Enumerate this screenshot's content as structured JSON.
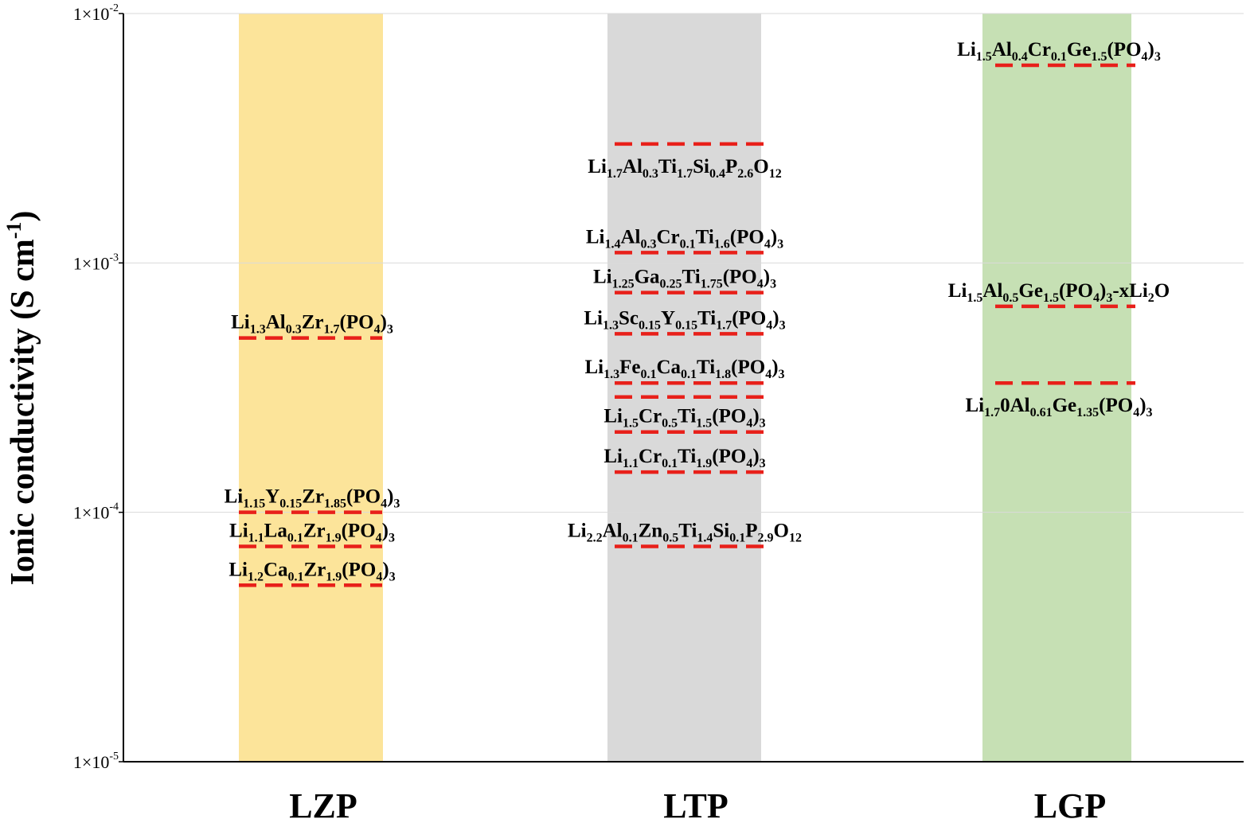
{
  "chart_data": {
    "type": "scatter",
    "title": "",
    "xlabel": "",
    "ylabel": "Ionic conductivity (S cm-1)",
    "ylabel_parts": [
      {
        "t": "Ionic conductivity (S cm"
      },
      {
        "t": "-1",
        "sup": true
      },
      {
        "t": ")"
      }
    ],
    "yscale": "log",
    "ylim": [
      1e-05,
      0.01
    ],
    "yticks": [
      {
        "value": 1e-05,
        "label": "1×10-5",
        "mantissa": "1×10",
        "exponent": "-5"
      },
      {
        "value": 0.0001,
        "label": "1×10-4",
        "mantissa": "1×10",
        "exponent": "-4"
      },
      {
        "value": 0.001,
        "label": "1×10-3",
        "mantissa": "1×10",
        "exponent": "-3"
      },
      {
        "value": 0.01,
        "label": "1×10-2",
        "mantissa": "1×10",
        "exponent": "-2"
      }
    ],
    "grid": true,
    "categories": [
      "LZP",
      "LTP",
      "LGP"
    ],
    "band_colors": {
      "LZP": "#fce49a",
      "LTP": "#d9d9d9",
      "LGP": "#c6e0b4"
    },
    "line_color": "#e8201a",
    "points": [
      {
        "category": "LZP",
        "value": 0.0005,
        "label": "Li1.3Al0.3Zr1.7(PO4)3",
        "label_pos": "above",
        "parts": [
          {
            "t": "Li"
          },
          {
            "t": "1.3",
            "sub": true
          },
          {
            "t": "Al"
          },
          {
            "t": "0.3",
            "sub": true
          },
          {
            "t": "Zr"
          },
          {
            "t": "1.7",
            "sub": true
          },
          {
            "t": "(PO"
          },
          {
            "t": "4",
            "sub": true
          },
          {
            "t": ")"
          },
          {
            "t": "3",
            "sub": true
          }
        ]
      },
      {
        "category": "LZP",
        "value": 0.0001,
        "label": "Li1.15Y0.15Zr1.85(PO4)3",
        "label_pos": "above",
        "parts": [
          {
            "t": "Li"
          },
          {
            "t": "1.15",
            "sub": true
          },
          {
            "t": "Y"
          },
          {
            "t": "0.15",
            "sub": true
          },
          {
            "t": "Zr"
          },
          {
            "t": "1.85",
            "sub": true
          },
          {
            "t": "(PO"
          },
          {
            "t": "4",
            "sub": true
          },
          {
            "t": ")"
          },
          {
            "t": "3",
            "sub": true
          }
        ]
      },
      {
        "category": "LZP",
        "value": 7.3e-05,
        "label": "Li1.1La0.1Zr1.9(PO4)3",
        "label_pos": "above",
        "parts": [
          {
            "t": "Li"
          },
          {
            "t": "1.1",
            "sub": true
          },
          {
            "t": "La"
          },
          {
            "t": "0.1",
            "sub": true
          },
          {
            "t": "Zr"
          },
          {
            "t": "1.9",
            "sub": true
          },
          {
            "t": "(PO"
          },
          {
            "t": "4",
            "sub": true
          },
          {
            "t": ")"
          },
          {
            "t": "3",
            "sub": true
          }
        ]
      },
      {
        "category": "LZP",
        "value": 5.1e-05,
        "label": "Li1.2Ca0.1Zr1.9(PO4)3",
        "label_pos": "above",
        "parts": [
          {
            "t": "Li"
          },
          {
            "t": "1.2",
            "sub": true
          },
          {
            "t": "Ca"
          },
          {
            "t": "0.1",
            "sub": true
          },
          {
            "t": "Zr"
          },
          {
            "t": "1.9",
            "sub": true
          },
          {
            "t": "(PO"
          },
          {
            "t": "4",
            "sub": true
          },
          {
            "t": ")"
          },
          {
            "t": "3",
            "sub": true
          }
        ]
      },
      {
        "category": "LTP",
        "value": 0.003,
        "label": "Li1.7Al0.3Ti1.7Si0.4P2.6O12",
        "label_pos": "below",
        "parts": [
          {
            "t": "Li"
          },
          {
            "t": "1.7",
            "sub": true
          },
          {
            "t": "Al"
          },
          {
            "t": "0.3",
            "sub": true
          },
          {
            "t": "Ti"
          },
          {
            "t": "1.7",
            "sub": true
          },
          {
            "t": "Si"
          },
          {
            "t": "0.4",
            "sub": true
          },
          {
            "t": "P"
          },
          {
            "t": "2.6",
            "sub": true
          },
          {
            "t": "O"
          },
          {
            "t": "12",
            "sub": true
          }
        ]
      },
      {
        "category": "LTP",
        "value": 0.0011,
        "label": "Li1.4Al0.3Cr0.1Ti1.6(PO4)3",
        "label_pos": "above",
        "parts": [
          {
            "t": "Li"
          },
          {
            "t": "1.4",
            "sub": true
          },
          {
            "t": "Al"
          },
          {
            "t": "0.3",
            "sub": true
          },
          {
            "t": "Cr"
          },
          {
            "t": "0.1",
            "sub": true
          },
          {
            "t": "Ti"
          },
          {
            "t": "1.6",
            "sub": true
          },
          {
            "t": "(PO"
          },
          {
            "t": "4",
            "sub": true
          },
          {
            "t": ")"
          },
          {
            "t": "3",
            "sub": true
          }
        ]
      },
      {
        "category": "LTP",
        "value": 0.00076,
        "label": "Li1.25Ga0.25Ti1.75(PO4)3",
        "label_pos": "above",
        "parts": [
          {
            "t": "Li"
          },
          {
            "t": "1.25",
            "sub": true
          },
          {
            "t": "Ga"
          },
          {
            "t": "0.25",
            "sub": true
          },
          {
            "t": "Ti"
          },
          {
            "t": "1.75",
            "sub": true
          },
          {
            "t": "(PO"
          },
          {
            "t": "4",
            "sub": true
          },
          {
            "t": ")"
          },
          {
            "t": "3",
            "sub": true
          }
        ]
      },
      {
        "category": "LTP",
        "value": 0.00052,
        "label": "Li1.3Sc0.15Y0.15Ti1.7(PO4)3",
        "label_pos": "above",
        "parts": [
          {
            "t": "Li"
          },
          {
            "t": "1.3",
            "sub": true
          },
          {
            "t": "Sc"
          },
          {
            "t": "0.15",
            "sub": true
          },
          {
            "t": "Y"
          },
          {
            "t": "0.15",
            "sub": true
          },
          {
            "t": "Ti"
          },
          {
            "t": "1.7",
            "sub": true
          },
          {
            "t": "(PO"
          },
          {
            "t": "4",
            "sub": true
          },
          {
            "t": ")"
          },
          {
            "t": "3",
            "sub": true
          }
        ]
      },
      {
        "category": "LTP",
        "value": 0.00033,
        "label": "Li1.3Fe0.1Ca0.1Ti1.8(PO4)3",
        "label_pos": "above",
        "parts": [
          {
            "t": "Li"
          },
          {
            "t": "1.3",
            "sub": true
          },
          {
            "t": "Fe"
          },
          {
            "t": "0.1",
            "sub": true
          },
          {
            "t": "Ca"
          },
          {
            "t": "0.1",
            "sub": true
          },
          {
            "t": "Ti"
          },
          {
            "t": "1.8",
            "sub": true
          },
          {
            "t": "(PO"
          },
          {
            "t": "4",
            "sub": true
          },
          {
            "t": ")"
          },
          {
            "t": "3",
            "sub": true
          }
        ]
      },
      {
        "category": "LTP",
        "value": 0.00029,
        "label": "",
        "label_pos": "none"
      },
      {
        "category": "LTP",
        "value": 0.00021,
        "label": "Li1.5Cr0.5Ti1.5(PO4)3",
        "label_pos": "above",
        "parts": [
          {
            "t": "Li"
          },
          {
            "t": "1.5",
            "sub": true
          },
          {
            "t": "Cr"
          },
          {
            "t": "0.5",
            "sub": true
          },
          {
            "t": "Ti"
          },
          {
            "t": "1.5",
            "sub": true
          },
          {
            "t": "(PO"
          },
          {
            "t": "4",
            "sub": true
          },
          {
            "t": ")"
          },
          {
            "t": "3",
            "sub": true
          }
        ]
      },
      {
        "category": "LTP",
        "value": 0.000145,
        "label": "Li1.1Cr0.1Ti1.9(PO4)3",
        "label_pos": "above",
        "parts": [
          {
            "t": "Li"
          },
          {
            "t": "1.1",
            "sub": true
          },
          {
            "t": "Cr"
          },
          {
            "t": "0.1",
            "sub": true
          },
          {
            "t": "Ti"
          },
          {
            "t": "1.9",
            "sub": true
          },
          {
            "t": "(PO"
          },
          {
            "t": "4",
            "sub": true
          },
          {
            "t": ")"
          },
          {
            "t": "3",
            "sub": true
          }
        ]
      },
      {
        "category": "LTP",
        "value": 7.3e-05,
        "label": "Li2.2Al0.1Zn0.5Ti1.4Si0.1P2.9O12",
        "label_pos": "above",
        "parts": [
          {
            "t": "Li"
          },
          {
            "t": "2.2",
            "sub": true
          },
          {
            "t": "Al"
          },
          {
            "t": "0.1",
            "sub": true
          },
          {
            "t": "Zn"
          },
          {
            "t": "0.5",
            "sub": true
          },
          {
            "t": "Ti"
          },
          {
            "t": "1.4",
            "sub": true
          },
          {
            "t": "Si"
          },
          {
            "t": "0.1",
            "sub": true
          },
          {
            "t": "P"
          },
          {
            "t": "2.9",
            "sub": true
          },
          {
            "t": "O"
          },
          {
            "t": "12",
            "sub": true
          }
        ]
      },
      {
        "category": "LGP",
        "value": 0.0062,
        "label": "Li1.5Al0.4Cr0.1Ge1.5(PO4)3",
        "label_pos": "above",
        "parts": [
          {
            "t": "Li"
          },
          {
            "t": "1.5",
            "sub": true
          },
          {
            "t": "Al"
          },
          {
            "t": "0.4",
            "sub": true
          },
          {
            "t": "Cr"
          },
          {
            "t": "0.1",
            "sub": true
          },
          {
            "t": "Ge"
          },
          {
            "t": "1.5",
            "sub": true
          },
          {
            "t": "(PO"
          },
          {
            "t": "4",
            "sub": true
          },
          {
            "t": ")"
          },
          {
            "t": "3",
            "sub": true
          }
        ]
      },
      {
        "category": "LGP",
        "value": 0.00067,
        "label": "Li1.5Al0.5Ge1.5(PO4)3-xLi2O",
        "label_pos": "above",
        "parts": [
          {
            "t": "Li"
          },
          {
            "t": "1.5",
            "sub": true
          },
          {
            "t": "Al"
          },
          {
            "t": "0.5",
            "sub": true
          },
          {
            "t": "Ge"
          },
          {
            "t": "1.5",
            "sub": true
          },
          {
            "t": "(PO"
          },
          {
            "t": "4",
            "sub": true
          },
          {
            "t": ")"
          },
          {
            "t": "3",
            "sub": true
          },
          {
            "t": "-xLi"
          },
          {
            "t": "2",
            "sub": true
          },
          {
            "t": "O"
          }
        ]
      },
      {
        "category": "LGP",
        "value": 0.00033,
        "label": "Li1.70Al0.61Ge1.35(PO4)3",
        "label_pos": "below",
        "parts": [
          {
            "t": "Li"
          },
          {
            "t": "1.7",
            "sub": true
          },
          {
            "t": "0Al"
          },
          {
            "t": "0.61",
            "sub": true
          },
          {
            "t": "Ge"
          },
          {
            "t": "1.35",
            "sub": true
          },
          {
            "t": "(PO"
          },
          {
            "t": "4",
            "sub": true
          },
          {
            "t": ")"
          },
          {
            "t": "3",
            "sub": true
          }
        ]
      }
    ]
  }
}
